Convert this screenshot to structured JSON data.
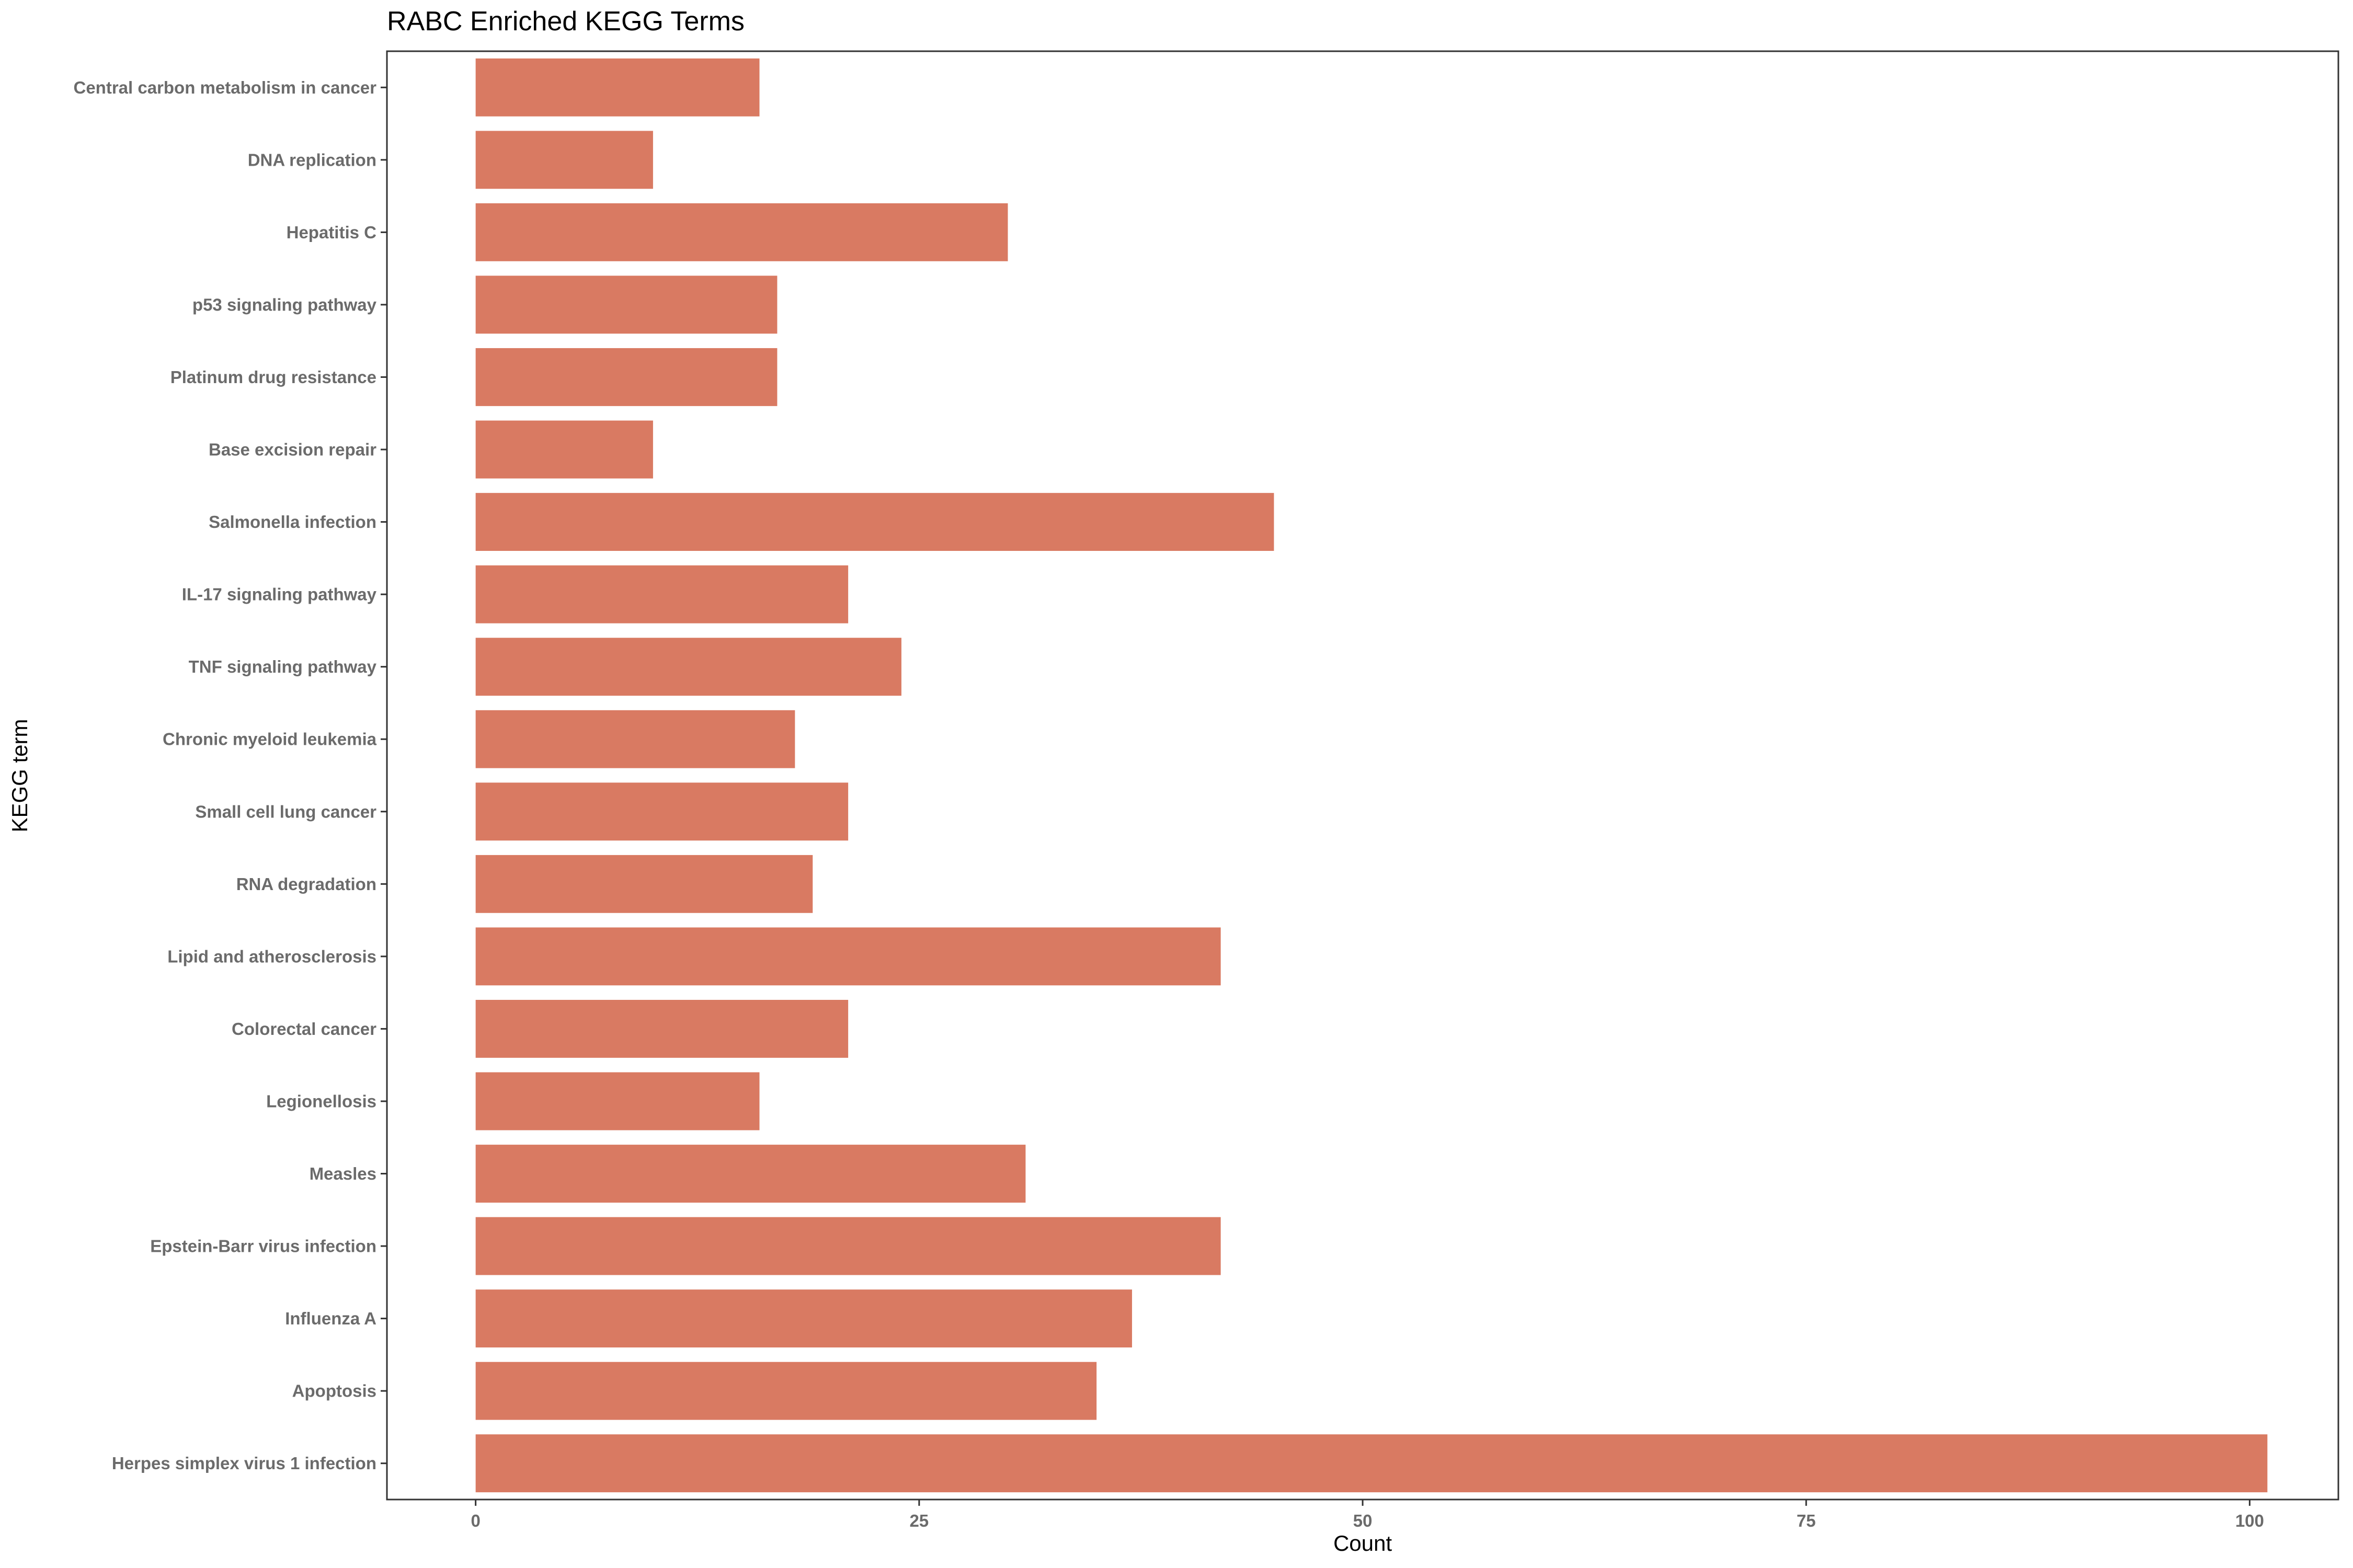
{
  "chart_data": {
    "type": "bar",
    "orientation": "horizontal",
    "title": "RABC Enriched KEGG Terms",
    "xlabel": "Count",
    "ylabel": "KEGG term",
    "categories": [
      "Central carbon metabolism in cancer",
      "DNA replication",
      "Hepatitis C",
      "p53 signaling pathway",
      "Platinum drug resistance",
      "Base excision repair",
      "Salmonella infection",
      "IL-17 signaling pathway",
      "TNF signaling pathway",
      "Chronic myeloid leukemia",
      "Small cell lung cancer",
      "RNA degradation",
      "Lipid and atherosclerosis",
      "Colorectal cancer",
      "Legionellosis",
      "Measles",
      "Epstein-Barr virus infection",
      "Influenza A",
      "Apoptosis",
      "Herpes simplex virus 1 infection"
    ],
    "values": [
      16,
      10,
      30,
      17,
      17,
      10,
      45,
      21,
      24,
      18,
      21,
      19,
      42,
      21,
      16,
      31,
      42,
      37,
      35,
      101
    ],
    "xlim": [
      -5,
      105
    ],
    "xticks": [
      0,
      25,
      50,
      75,
      100
    ],
    "bar_color": "#D97A62",
    "grid": false,
    "legend": "none"
  }
}
